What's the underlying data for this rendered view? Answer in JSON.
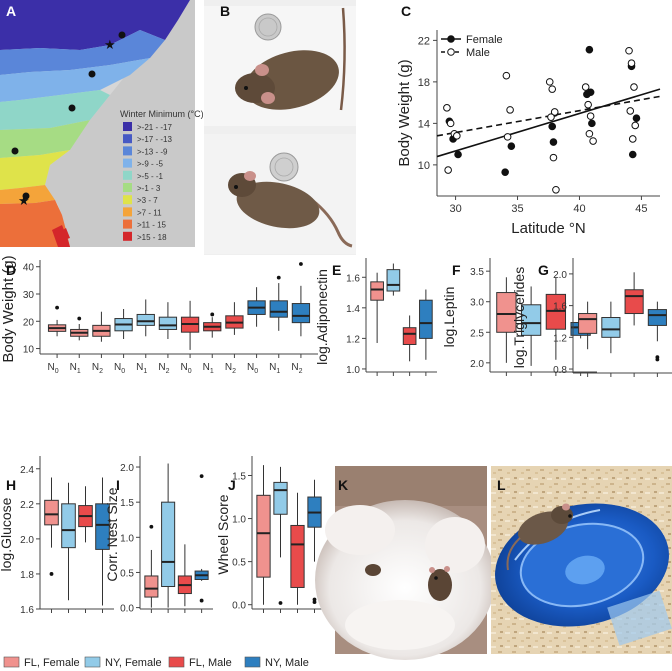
{
  "figure": {
    "panel_letters": [
      "A",
      "B",
      "C",
      "D",
      "E",
      "F",
      "G",
      "H",
      "I",
      "J",
      "K",
      "L"
    ],
    "group_colors": {
      "fl_female": "#f0928e",
      "ny_female": "#92cbe8",
      "fl_male": "#e84b4b",
      "ny_male": "#2e7fbf"
    },
    "legend": {
      "entries": [
        {
          "label": "FL, Female",
          "color": "#f0928e"
        },
        {
          "label": "NY, Female",
          "color": "#92cbe8"
        },
        {
          "label": "FL, Male",
          "color": "#e84b4b"
        },
        {
          "label": "NY, Male",
          "color": "#2e7fbf"
        }
      ]
    }
  },
  "map_panel": {
    "legend_title": "Winter Minimum (°C)",
    "bands": [
      {
        "label": ">-21 - -17",
        "color": "#3b2fa8"
      },
      {
        "label": ">-17 - -13",
        "color": "#4659c4"
      },
      {
        "label": ">-13 - -9",
        "color": "#5a86d9"
      },
      {
        "label": ">-9 - -5",
        "color": "#7fb2ea"
      },
      {
        "label": ">-5 - -1",
        "color": "#8fd6c8"
      },
      {
        "label": ">-1 - 3",
        "color": "#a6dc84"
      },
      {
        "label": ">3 - 7",
        "color": "#dfe34a"
      },
      {
        "label": ">7 - 11",
        "color": "#f4a43a"
      },
      {
        "label": ">11 - 15",
        "color": "#ec6f3a"
      },
      {
        "label": ">15 - 18",
        "color": "#d4262a"
      }
    ]
  },
  "photo_panels": {
    "B": "mouse with coin (top and bottom views)",
    "K": "mouse in nest",
    "L": "mouse on running wheel"
  },
  "chart_data": [
    {
      "panel": "C",
      "type": "scatter",
      "xlabel": "Latitude °N",
      "ylabel": "Body Weight (g)",
      "xlim": [
        28.5,
        46.5
      ],
      "ylim": [
        7,
        23
      ],
      "xticks": [
        30,
        35,
        40,
        45
      ],
      "yticks": [
        10,
        14,
        18,
        22
      ],
      "legend": [
        "Female",
        "Male"
      ],
      "series": [
        {
          "name": "Female",
          "marker": "filled",
          "x": [
            29.5,
            29.8,
            30.2,
            34.0,
            34.5,
            37.8,
            38.0,
            37.9,
            40.8,
            40.9,
            40.6,
            41.0,
            44.2,
            44.6,
            44.3
          ],
          "y": [
            14.2,
            12.5,
            11.0,
            9.3,
            11.8,
            13.7,
            15.0,
            12.2,
            21.1,
            17.0,
            16.8,
            14.0,
            19.5,
            14.5,
            11.0
          ]
        },
        {
          "name": "Male",
          "marker": "open",
          "x": [
            29.3,
            29.6,
            29.9,
            30.1,
            29.4,
            34.1,
            34.4,
            34.2,
            37.6,
            37.8,
            38.0,
            37.7,
            37.9,
            38.1,
            40.5,
            40.7,
            40.9,
            41.1,
            40.8,
            44.0,
            44.2,
            44.4,
            44.1,
            44.5,
            44.3
          ],
          "y": [
            15.5,
            14.0,
            13.0,
            12.8,
            9.5,
            18.6,
            15.3,
            12.7,
            18.0,
            17.3,
            15.1,
            14.6,
            10.7,
            7.6,
            17.5,
            15.8,
            14.7,
            12.3,
            13.0,
            21.0,
            19.8,
            17.5,
            15.2,
            13.8,
            12.5
          ]
        }
      ],
      "fit_lines": [
        {
          "name": "Female",
          "style": "solid",
          "x": [
            28.5,
            46.5
          ],
          "y": [
            10.8,
            17.3
          ]
        },
        {
          "name": "Male",
          "style": "dashed",
          "x": [
            28.5,
            46.5
          ],
          "y": [
            12.8,
            16.6
          ]
        }
      ]
    },
    {
      "panel": "D",
      "type": "box",
      "ylabel": "Body Weight (g)",
      "ylim": [
        8,
        41
      ],
      "yticks": [
        10,
        20,
        30,
        40
      ],
      "categories": [
        "N0",
        "N1",
        "N2",
        "N0",
        "N1",
        "N2",
        "N0",
        "N1",
        "N2",
        "N0",
        "N1",
        "N2"
      ],
      "groups": [
        "fl_female",
        "fl_female",
        "fl_female",
        "ny_female",
        "ny_female",
        "ny_female",
        "fl_male",
        "fl_male",
        "fl_male",
        "ny_male",
        "ny_male",
        "ny_male"
      ],
      "boxes": [
        {
          "min": 14.5,
          "q1": 16.3,
          "median": 17.5,
          "q3": 18.7,
          "max": 20.5,
          "outliers": [
            25
          ]
        },
        {
          "min": 13.0,
          "q1": 14.5,
          "median": 15.8,
          "q3": 17.0,
          "max": 19.0,
          "outliers": [
            21
          ]
        },
        {
          "min": 12.5,
          "q1": 14.5,
          "median": 16.5,
          "q3": 18.5,
          "max": 23.5,
          "outliers": []
        },
        {
          "min": 13.5,
          "q1": 16.5,
          "median": 18.8,
          "q3": 21.0,
          "max": 24.5,
          "outliers": []
        },
        {
          "min": 14.5,
          "q1": 18.5,
          "median": 20.0,
          "q3": 22.5,
          "max": 28.0,
          "outliers": []
        },
        {
          "min": 13.5,
          "q1": 17.0,
          "median": 18.5,
          "q3": 21.5,
          "max": 27.0,
          "outliers": []
        },
        {
          "min": 9.5,
          "q1": 16.0,
          "median": 19.0,
          "q3": 21.5,
          "max": 27.5,
          "outliers": []
        },
        {
          "min": 14.0,
          "q1": 16.5,
          "median": 18.0,
          "q3": 19.5,
          "max": 21.5,
          "outliers": [
            22.5
          ]
        },
        {
          "min": 15.0,
          "q1": 17.5,
          "median": 19.5,
          "q3": 22.0,
          "max": 27.0,
          "outliers": []
        },
        {
          "min": 18.0,
          "q1": 22.5,
          "median": 25.0,
          "q3": 27.5,
          "max": 32.5,
          "outliers": []
        },
        {
          "min": 16.5,
          "q1": 21.5,
          "median": 23.5,
          "q3": 27.5,
          "max": 34.0,
          "outliers": [
            36
          ]
        },
        {
          "min": 14.5,
          "q1": 19.5,
          "median": 22.0,
          "q3": 26.5,
          "max": 33.0,
          "outliers": [
            41
          ]
        }
      ]
    },
    {
      "panel": "E",
      "type": "box",
      "ylabel": "log.Adiponectin",
      "ylim": [
        0.98,
        1.7
      ],
      "yticks": [
        1.0,
        1.2,
        1.4,
        1.6
      ],
      "groups": [
        "fl_female",
        "ny_female",
        "fl_male",
        "ny_male"
      ],
      "boxes": [
        {
          "min": 1.17,
          "q1": 1.45,
          "median": 1.52,
          "q3": 1.57,
          "max": 1.63,
          "outliers": []
        },
        {
          "min": 1.48,
          "q1": 1.51,
          "median": 1.55,
          "q3": 1.65,
          "max": 1.69,
          "outliers": []
        },
        {
          "min": 1.05,
          "q1": 1.16,
          "median": 1.23,
          "q3": 1.27,
          "max": 1.35,
          "outliers": []
        },
        {
          "min": 1.06,
          "q1": 1.2,
          "median": 1.3,
          "q3": 1.45,
          "max": 1.52,
          "outliers": []
        }
      ]
    },
    {
      "panel": "F",
      "type": "box",
      "ylabel": "log.Leptin",
      "ylim": [
        1.85,
        3.65
      ],
      "yticks": [
        2.0,
        2.5,
        3.0,
        3.5
      ],
      "groups": [
        "fl_female",
        "ny_female",
        "fl_male",
        "ny_male"
      ],
      "boxes": [
        {
          "min": 2.0,
          "q1": 2.5,
          "median": 2.8,
          "q3": 3.15,
          "max": 3.4,
          "outliers": []
        },
        {
          "min": 1.95,
          "q1": 2.45,
          "median": 2.65,
          "q3": 2.95,
          "max": 3.25,
          "outliers": []
        },
        {
          "min": 2.05,
          "q1": 2.55,
          "median": 2.85,
          "q3": 3.12,
          "max": 3.4,
          "outliers": []
        },
        {
          "min": 2.4,
          "q1": 2.45,
          "median": 2.58,
          "q3": 2.66,
          "max": 2.8,
          "outliers": []
        }
      ]
    },
    {
      "panel": "G",
      "type": "box",
      "ylabel": "log.Triglycerides",
      "ylim": [
        0.75,
        2.15
      ],
      "yticks": [
        0.8,
        1.2,
        1.6,
        2.0
      ],
      "groups": [
        "fl_female",
        "ny_female",
        "fl_male",
        "ny_male"
      ],
      "boxes": [
        {
          "min": 1.05,
          "q1": 1.25,
          "median": 1.43,
          "q3": 1.5,
          "max": 1.65,
          "outliers": []
        },
        {
          "min": 1.0,
          "q1": 1.2,
          "median": 1.3,
          "q3": 1.45,
          "max": 1.65,
          "outliers": []
        },
        {
          "min": 1.35,
          "q1": 1.5,
          "median": 1.72,
          "q3": 1.8,
          "max": 2.02,
          "outliers": []
        },
        {
          "min": 1.15,
          "q1": 1.35,
          "median": 1.48,
          "q3": 1.55,
          "max": 1.65,
          "outliers": [
            0.95,
            0.92
          ]
        }
      ]
    },
    {
      "panel": "H",
      "type": "box",
      "ylabel": "log.Glucose",
      "ylim": [
        1.6,
        2.45
      ],
      "yticks": [
        1.6,
        1.8,
        2.0,
        2.2,
        2.4
      ],
      "groups": [
        "fl_female",
        "ny_female",
        "fl_male",
        "ny_male"
      ],
      "boxes": [
        {
          "min": 1.95,
          "q1": 2.08,
          "median": 2.14,
          "q3": 2.22,
          "max": 2.35,
          "outliers": [
            1.8
          ]
        },
        {
          "min": 1.65,
          "q1": 1.95,
          "median": 2.05,
          "q3": 2.2,
          "max": 2.32,
          "outliers": []
        },
        {
          "min": 1.98,
          "q1": 2.07,
          "median": 2.13,
          "q3": 2.19,
          "max": 2.3,
          "outliers": []
        },
        {
          "min": 1.62,
          "q1": 1.94,
          "median": 2.08,
          "q3": 2.2,
          "max": 2.35,
          "outliers": []
        }
      ]
    },
    {
      "panel": "I",
      "type": "box",
      "ylabel": "Corr. Nest Size",
      "ylim": [
        -0.02,
        2.1
      ],
      "yticks": [
        0.0,
        0.5,
        1.0,
        1.5,
        2.0
      ],
      "groups": [
        "fl_female",
        "ny_female",
        "fl_male",
        "ny_male"
      ],
      "boxes": [
        {
          "min": 0.0,
          "q1": 0.15,
          "median": 0.27,
          "q3": 0.45,
          "max": 0.82,
          "outliers": [
            1.15
          ]
        },
        {
          "min": 0.0,
          "q1": 0.3,
          "median": 0.65,
          "q3": 1.5,
          "max": 2.05,
          "outliers": []
        },
        {
          "min": 0.02,
          "q1": 0.2,
          "median": 0.32,
          "q3": 0.45,
          "max": 0.9,
          "outliers": []
        },
        {
          "min": 0.38,
          "q1": 0.4,
          "median": 0.46,
          "q3": 0.52,
          "max": 0.55,
          "outliers": [
            1.87,
            0.1
          ]
        }
      ]
    },
    {
      "panel": "J",
      "type": "box",
      "ylabel": "Wheel Score",
      "ylim": [
        -0.05,
        1.68
      ],
      "yticks": [
        0.0,
        0.5,
        1.0,
        1.5
      ],
      "groups": [
        "fl_female",
        "ny_female",
        "fl_male",
        "ny_male"
      ],
      "boxes": [
        {
          "min": 0.0,
          "q1": 0.32,
          "median": 0.83,
          "q3": 1.27,
          "max": 1.62,
          "outliers": []
        },
        {
          "min": 0.55,
          "q1": 1.05,
          "median": 1.33,
          "q3": 1.42,
          "max": 1.6,
          "outliers": [
            0.02
          ]
        },
        {
          "min": 0.0,
          "q1": 0.2,
          "median": 0.7,
          "q3": 0.92,
          "max": 1.3,
          "outliers": []
        },
        {
          "min": 0.5,
          "q1": 0.9,
          "median": 1.07,
          "q3": 1.25,
          "max": 1.45,
          "outliers": [
            0.06,
            0.03
          ]
        }
      ]
    }
  ]
}
